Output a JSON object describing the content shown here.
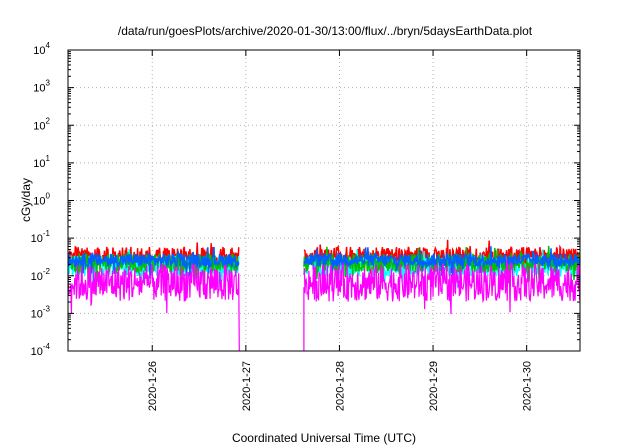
{
  "chart_data": {
    "type": "line",
    "title": "/data/run/goesPlots/archive/2020-01-30/13:00/flux/../bryn/5daysEarthData.plot",
    "xlabel": "Coordinated Universal Time (UTC)",
    "ylabel": "cGy/day",
    "yscale": "log",
    "ylim": [
      0.0001,
      10000
    ],
    "xlim": [
      25.1,
      30.57
    ],
    "grid": true,
    "x_ticks": [
      {
        "value": 26,
        "label": "2020-1-26"
      },
      {
        "value": 27,
        "label": "2020-1-27"
      },
      {
        "value": 28,
        "label": "2020-1-28"
      },
      {
        "value": 29,
        "label": "2020-1-29"
      },
      {
        "value": 30,
        "label": "2020-1-30"
      }
    ],
    "y_ticks": [
      {
        "value": 0.0001,
        "base": "10",
        "exp": "-4"
      },
      {
        "value": 0.001,
        "base": "10",
        "exp": "-3"
      },
      {
        "value": 0.01,
        "base": "10",
        "exp": "-2"
      },
      {
        "value": 0.1,
        "base": "10",
        "exp": "-1"
      },
      {
        "value": 1,
        "base": "10",
        "exp": "0"
      },
      {
        "value": 10,
        "base": "10",
        "exp": "1"
      },
      {
        "value": 100,
        "base": "10",
        "exp": "2"
      },
      {
        "value": 1000,
        "base": "10",
        "exp": "3"
      },
      {
        "value": 10000,
        "base": "10",
        "exp": "4"
      }
    ],
    "data_gap": [
      26.93,
      27.62
    ],
    "series": [
      {
        "color": "#ff0000",
        "base": 0.033,
        "spread": 0.5
      },
      {
        "color": "#00ffff",
        "base": 0.018,
        "spread": 0.55
      },
      {
        "color": "#00c000",
        "base": 0.022,
        "spread": 0.5
      },
      {
        "color": "#0060ff",
        "base": 0.026,
        "spread": 0.35
      },
      {
        "color": "#ff00ff",
        "base": 0.0065,
        "spread": 1.0
      }
    ]
  }
}
